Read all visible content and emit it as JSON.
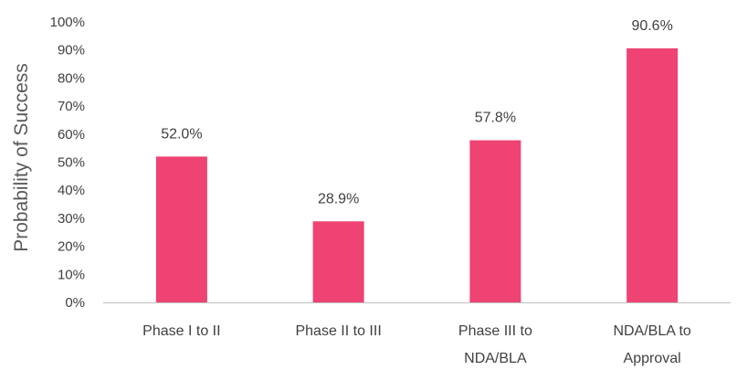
{
  "chart_data": {
    "type": "bar",
    "categories": [
      [
        "Phase I to II"
      ],
      [
        "Phase II to III"
      ],
      [
        "Phase III to",
        "NDA/BLA"
      ],
      [
        "NDA/BLA to",
        "Approval"
      ]
    ],
    "values": [
      52.0,
      28.9,
      57.8,
      90.6
    ],
    "data_labels": [
      "52.0%",
      "28.9%",
      "57.8%",
      "90.6%"
    ],
    "ylabel": "Probability of Success",
    "ylim": [
      0,
      100
    ],
    "yticks": [
      "0%",
      "10%",
      "20%",
      "30%",
      "40%",
      "50%",
      "60%",
      "70%",
      "80%",
      "90%",
      "100%"
    ],
    "grid": false,
    "bar_color": "#EE4373",
    "axis_color": "#BFBFBF"
  }
}
